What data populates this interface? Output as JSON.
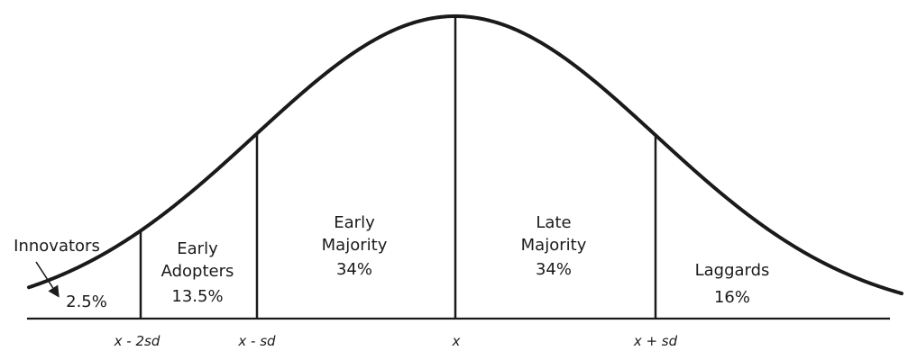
{
  "segments": [
    {
      "name": "Innovators",
      "name_lines": [
        "Innovators"
      ],
      "share": "2.5%"
    },
    {
      "name": "Early Adopters",
      "name_lines": [
        "Early",
        "Adopters"
      ],
      "share": "13.5%"
    },
    {
      "name": "Early Majority",
      "name_lines": [
        "Early",
        "Majority"
      ],
      "share": "34%"
    },
    {
      "name": "Late Majority",
      "name_lines": [
        "Late",
        "Majority"
      ],
      "share": "34%"
    },
    {
      "name": "Laggards",
      "name_lines": [
        "Laggards"
      ],
      "share": "16%"
    }
  ],
  "axis_markers": [
    "x - 2sd",
    "x - sd",
    "x",
    "x + sd"
  ],
  "colors": {
    "ink": "#1a1a1a",
    "background": "#ffffff"
  }
}
